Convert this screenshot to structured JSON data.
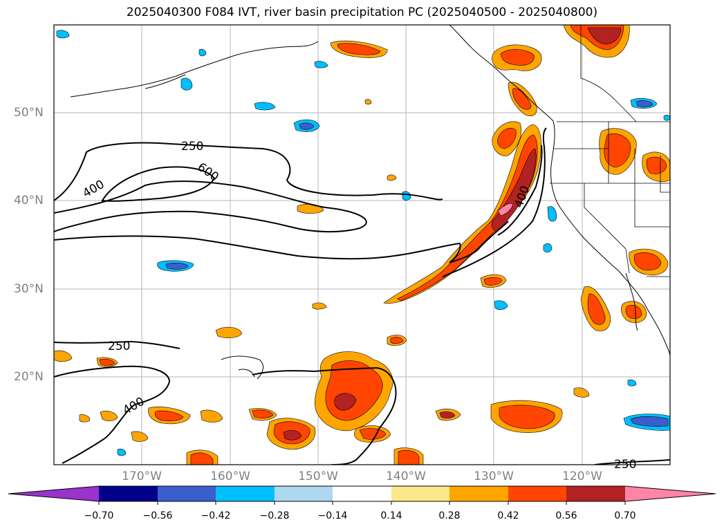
{
  "title": "2025040300 F084 IVT, river basin precipitation PC (2025040500 - 2025040800)",
  "map": {
    "lat_labels": [
      "50°N",
      "40°N",
      "30°N",
      "20°N"
    ],
    "lon_labels": [
      "170°W",
      "160°W",
      "150°W",
      "140°W",
      "130°W",
      "120°W"
    ],
    "contour_labels": [
      "250",
      "600",
      "400",
      "400",
      "250",
      "400",
      "250"
    ]
  },
  "colorbar": {
    "colors": [
      "#9933cc",
      "#00008b",
      "#3a5fcd",
      "#00bfff",
      "#add8f0",
      "#ffffff",
      "#fbe88a",
      "#ffa500",
      "#ff4500",
      "#b22222",
      "#ff85a8"
    ],
    "tick_labels": [
      "−0.70",
      "−0.56",
      "−0.42",
      "−0.28",
      "−0.14",
      "0.14",
      "0.28",
      "0.42",
      "0.56",
      "0.70"
    ]
  }
}
